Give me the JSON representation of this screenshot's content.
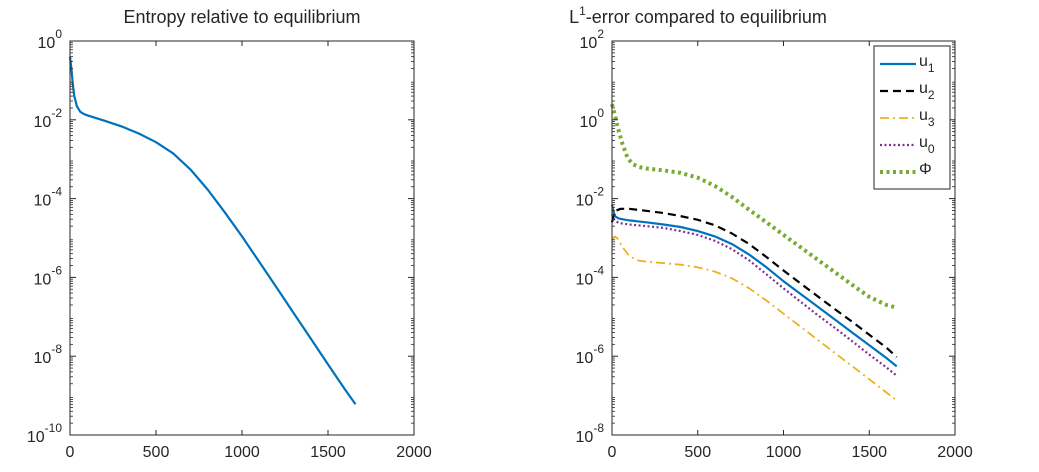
{
  "chart_data": [
    {
      "type": "line",
      "title": "Entropy relative to equilibrium",
      "xlabel": "",
      "ylabel": "",
      "xlim": [
        0,
        2000
      ],
      "ylim": [
        1e-10,
        1
      ],
      "yscale": "log",
      "xticks": [
        0,
        500,
        1000,
        1500,
        2000
      ],
      "xtick_labels": [
        "0",
        "500",
        "1000",
        "1500",
        "2000"
      ],
      "yticks": [
        {
          "value": 1,
          "base": "10",
          "exp": "0"
        },
        {
          "value": 0.01,
          "base": "10",
          "exp": "-2"
        },
        {
          "value": 0.0001,
          "base": "10",
          "exp": "-4"
        },
        {
          "value": 1e-06,
          "base": "10",
          "exp": "-6"
        },
        {
          "value": 1e-08,
          "base": "10",
          "exp": "-8"
        },
        {
          "value": 1e-10,
          "base": "10",
          "exp": "-10"
        }
      ],
      "grid": false,
      "series": [
        {
          "color": "#0072bd",
          "style": "solid",
          "points": [
            [
              0,
              0.4
            ],
            [
              8,
              0.2
            ],
            [
              15,
              0.09
            ],
            [
              25,
              0.04
            ],
            [
              40,
              0.022
            ],
            [
              60,
              0.016
            ],
            [
              80,
              0.014
            ],
            [
              100,
              0.013
            ],
            [
              200,
              0.0095
            ],
            [
              300,
              0.0068
            ],
            [
              400,
              0.0045
            ],
            [
              500,
              0.0027
            ],
            [
              600,
              0.0014
            ],
            [
              700,
              0.00055
            ],
            [
              800,
              0.00017
            ],
            [
              900,
              4.5e-05
            ],
            [
              1000,
              1.1e-05
            ],
            [
              1100,
              2.5e-06
            ],
            [
              1200,
              5.6e-07
            ],
            [
              1300,
              1.25e-07
            ],
            [
              1400,
              2.8e-08
            ],
            [
              1500,
              6.2e-09
            ],
            [
              1600,
              1.4e-09
            ],
            [
              1660,
              6e-10
            ]
          ]
        }
      ]
    },
    {
      "type": "line",
      "title_main": "L",
      "title_sup": "1",
      "title_rest": "-error compared to equilibrium",
      "xlabel": "",
      "ylabel": "",
      "xlim": [
        0,
        2000
      ],
      "ylim": [
        1e-08,
        100
      ],
      "yscale": "log",
      "xticks": [
        0,
        500,
        1000,
        1500,
        2000
      ],
      "xtick_labels": [
        "0",
        "500",
        "1000",
        "1500",
        "2000"
      ],
      "yticks": [
        {
          "value": 100,
          "base": "10",
          "exp": "2"
        },
        {
          "value": 1,
          "base": "10",
          "exp": "0"
        },
        {
          "value": 0.01,
          "base": "10",
          "exp": "-2"
        },
        {
          "value": 0.0001,
          "base": "10",
          "exp": "-4"
        },
        {
          "value": 1e-06,
          "base": "10",
          "exp": "-6"
        },
        {
          "value": 1e-08,
          "base": "10",
          "exp": "-8"
        }
      ],
      "grid": false,
      "legend_position": "top-right",
      "series": [
        {
          "name": "u",
          "sub": "1",
          "color": "#0072bd",
          "style": "solid",
          "points": [
            [
              0,
              0.007
            ],
            [
              10,
              0.0045
            ],
            [
              20,
              0.0035
            ],
            [
              40,
              0.0031
            ],
            [
              100,
              0.0028
            ],
            [
              200,
              0.0025
            ],
            [
              300,
              0.0022
            ],
            [
              400,
              0.0019
            ],
            [
              500,
              0.0015
            ],
            [
              600,
              0.0011
            ],
            [
              700,
              0.0007
            ],
            [
              800,
              0.00038
            ],
            [
              900,
              0.00018
            ],
            [
              1000,
              8e-05
            ],
            [
              1100,
              3.8e-05
            ],
            [
              1200,
              1.8e-05
            ],
            [
              1300,
              8.5e-06
            ],
            [
              1400,
              4e-06
            ],
            [
              1500,
              1.9e-06
            ],
            [
              1600,
              9e-07
            ],
            [
              1660,
              5.5e-07
            ]
          ]
        },
        {
          "name": "u",
          "sub": "2",
          "color": "#000000",
          "style": "dashed",
          "points": [
            [
              0,
              0.0025
            ],
            [
              10,
              0.004
            ],
            [
              25,
              0.005
            ],
            [
              50,
              0.0055
            ],
            [
              100,
              0.0055
            ],
            [
              200,
              0.0049
            ],
            [
              300,
              0.0043
            ],
            [
              400,
              0.0036
            ],
            [
              500,
              0.0029
            ],
            [
              600,
              0.0021
            ],
            [
              700,
              0.0013
            ],
            [
              800,
              0.0007
            ],
            [
              900,
              0.00033
            ],
            [
              1000,
              0.00015
            ],
            [
              1100,
              7e-05
            ],
            [
              1200,
              3.3e-05
            ],
            [
              1300,
              1.55e-05
            ],
            [
              1400,
              7.5e-06
            ],
            [
              1500,
              3.5e-06
            ],
            [
              1600,
              1.65e-06
            ],
            [
              1660,
              9.5e-07
            ]
          ]
        },
        {
          "name": "u",
          "sub": "3",
          "color": "#edb120",
          "style": "dashdot",
          "points": [
            [
              0,
              0.0009
            ],
            [
              15,
              0.0011
            ],
            [
              30,
              0.001
            ],
            [
              60,
              0.0006
            ],
            [
              100,
              0.00035
            ],
            [
              150,
              0.00027
            ],
            [
              200,
              0.00025
            ],
            [
              300,
              0.00023
            ],
            [
              400,
              0.00021
            ],
            [
              500,
              0.00018
            ],
            [
              600,
              0.00014
            ],
            [
              700,
              9.5e-05
            ],
            [
              800,
              5.3e-05
            ],
            [
              900,
              2.6e-05
            ],
            [
              1000,
              1.2e-05
            ],
            [
              1100,
              5.6e-06
            ],
            [
              1200,
              2.6e-06
            ],
            [
              1300,
              1.2e-06
            ],
            [
              1400,
              5.6e-07
            ],
            [
              1500,
              2.6e-07
            ],
            [
              1600,
              1.2e-07
            ],
            [
              1660,
              7.5e-08
            ]
          ]
        },
        {
          "name": "u",
          "sub": "0",
          "color": "#7e2f8e",
          "style": "dotted",
          "points": [
            [
              0,
              0.004
            ],
            [
              15,
              0.0028
            ],
            [
              40,
              0.0024
            ],
            [
              100,
              0.0022
            ],
            [
              200,
              0.002
            ],
            [
              300,
              0.0018
            ],
            [
              400,
              0.0015
            ],
            [
              500,
              0.0012
            ],
            [
              600,
              0.00085
            ],
            [
              700,
              0.00052
            ],
            [
              800,
              0.00027
            ],
            [
              900,
              0.00012
            ],
            [
              1000,
              5.3e-05
            ],
            [
              1100,
              2.4e-05
            ],
            [
              1200,
              1.1e-05
            ],
            [
              1300,
              5.2e-06
            ],
            [
              1400,
              2.4e-06
            ],
            [
              1500,
              1.1e-06
            ],
            [
              1600,
              5.2e-07
            ],
            [
              1660,
              3.2e-07
            ]
          ]
        },
        {
          "name": "Φ",
          "sub": "",
          "color": "#77ac30",
          "style": "dotted-thick",
          "points": [
            [
              0,
              2.5
            ],
            [
              15,
              1.4
            ],
            [
              35,
              0.6
            ],
            [
              60,
              0.25
            ],
            [
              90,
              0.11
            ],
            [
              120,
              0.075
            ],
            [
              160,
              0.063
            ],
            [
              200,
              0.058
            ],
            [
              300,
              0.052
            ],
            [
              400,
              0.045
            ],
            [
              500,
              0.034
            ],
            [
              600,
              0.021
            ],
            [
              700,
              0.011
            ],
            [
              800,
              0.0052
            ],
            [
              900,
              0.0025
            ],
            [
              1000,
              0.0012
            ],
            [
              1100,
              0.00058
            ],
            [
              1200,
              0.00028
            ],
            [
              1300,
              0.000135
            ],
            [
              1400,
              6.5e-05
            ],
            [
              1500,
              3.2e-05
            ],
            [
              1600,
              2e-05
            ],
            [
              1660,
              1.7e-05
            ]
          ]
        }
      ]
    }
  ]
}
